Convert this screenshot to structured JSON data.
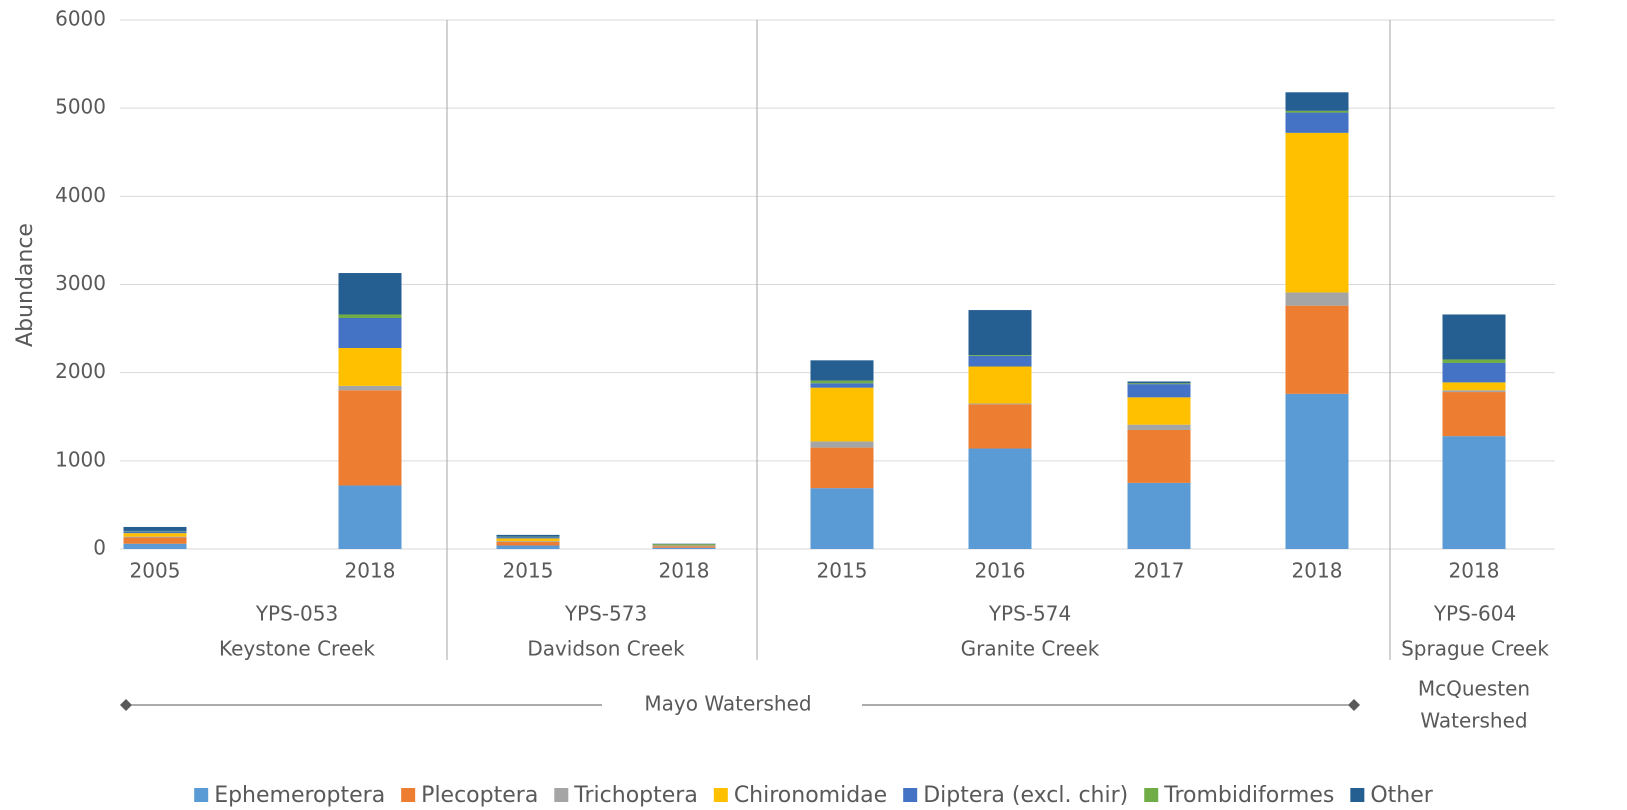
{
  "chart_data": {
    "type": "stacked_bar",
    "y_axis_label": "Abundance",
    "categories": [
      "2005",
      "2018",
      "2015",
      "2018",
      "2015",
      "2016",
      "2017",
      "2018",
      "2018"
    ],
    "groups": [
      [
        "YPS-053",
        "Keystone Creek"
      ],
      [
        "YPS-573",
        "Davidson Creek"
      ],
      [
        "YPS-574",
        "Granite Creek"
      ],
      [
        "YPS-604",
        "Sprague Creek"
      ]
    ],
    "watersheds": [
      [
        "Mayo Watershed"
      ],
      [
        "McQuesten",
        "Watershed"
      ]
    ],
    "series": [
      {
        "name": "Ephemeroptera",
        "color": "#5b9bd5",
        "values": [
          60,
          720,
          40,
          15,
          690,
          1140,
          750,
          1760,
          1280
        ]
      },
      {
        "name": "Plecoptera",
        "color": "#ed7d31",
        "values": [
          70,
          1080,
          40,
          15,
          460,
          500,
          600,
          1000,
          500
        ]
      },
      {
        "name": "Trichoptera",
        "color": "#a5a5a5",
        "values": [
          10,
          50,
          10,
          5,
          70,
          10,
          60,
          150,
          20
        ]
      },
      {
        "name": "Chironomidae",
        "color": "#ffc000",
        "values": [
          40,
          430,
          30,
          5,
          610,
          420,
          310,
          1810,
          90
        ]
      },
      {
        "name": "Diptera (excl. chir)",
        "color": "#4472c4",
        "values": [
          20,
          340,
          15,
          5,
          50,
          120,
          150,
          230,
          220
        ]
      },
      {
        "name": "Trombidiformes",
        "color": "#70ad47",
        "values": [
          5,
          40,
          5,
          10,
          30,
          10,
          10,
          20,
          40
        ]
      },
      {
        "name": "Other",
        "color": "#255e91",
        "values": [
          45,
          470,
          20,
          5,
          230,
          510,
          20,
          210,
          510
        ]
      }
    ],
    "ylim": [
      0,
      6000
    ],
    "yticks": [
      0,
      1000,
      2000,
      3000,
      4000,
      5000,
      6000
    ],
    "grid": true
  }
}
